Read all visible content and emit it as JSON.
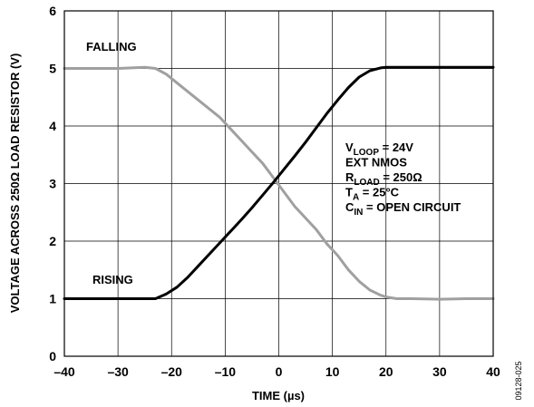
{
  "chart_data": {
    "type": "line",
    "xlabel": "TIME (µs)",
    "ylabel": "VOLTAGE ACROSS 250Ω LOAD RESISTOR (V)",
    "xlim": [
      -40,
      40
    ],
    "ylim": [
      0,
      6
    ],
    "x_ticks": [
      "–40",
      "–30",
      "–20",
      "–10",
      "0",
      "10",
      "20",
      "30",
      "40"
    ],
    "y_ticks": [
      "0",
      "1",
      "2",
      "3",
      "4",
      "5",
      "6"
    ],
    "grid": true,
    "series": [
      {
        "name": "FALLING",
        "color": "#a0a0a0",
        "x": [
          -40,
          -30,
          -25,
          -23,
          -21,
          -19,
          -17,
          -15,
          -13,
          -11,
          -9,
          -7,
          -5,
          -3,
          -1,
          1,
          3,
          5,
          7,
          9,
          11,
          13,
          15,
          17,
          19,
          20,
          22,
          25,
          30,
          35,
          40
        ],
        "y": [
          5.0,
          5.0,
          5.02,
          5.0,
          4.9,
          4.75,
          4.6,
          4.45,
          4.3,
          4.15,
          3.95,
          3.75,
          3.55,
          3.35,
          3.1,
          2.85,
          2.6,
          2.4,
          2.2,
          1.95,
          1.75,
          1.5,
          1.3,
          1.15,
          1.06,
          1.03,
          1.0,
          1.0,
          0.99,
          1.0,
          1.0
        ]
      },
      {
        "name": "RISING",
        "color": "#000000",
        "x": [
          -40,
          -30,
          -25,
          -23,
          -21,
          -19,
          -17,
          -15,
          -13,
          -11,
          -9,
          -7,
          -5,
          -3,
          -1,
          1,
          3,
          5,
          7,
          9,
          11,
          13,
          15,
          17,
          19,
          20,
          22,
          25,
          30,
          35,
          40
        ],
        "y": [
          1.0,
          1.0,
          1.0,
          1.0,
          1.08,
          1.2,
          1.37,
          1.57,
          1.77,
          1.97,
          2.17,
          2.37,
          2.58,
          2.8,
          3.02,
          3.25,
          3.48,
          3.72,
          3.97,
          4.22,
          4.45,
          4.67,
          4.85,
          4.96,
          5.01,
          5.02,
          5.02,
          5.02,
          5.02,
          5.02,
          5.02
        ]
      }
    ],
    "annotations": {
      "falling_label": "FALLING",
      "rising_label": "RISING",
      "conditions": [
        {
          "main": "V",
          "sub": "LOOP",
          "rest": " = 24V"
        },
        {
          "main": "EXT NMOS",
          "sub": "",
          "rest": ""
        },
        {
          "main": "R",
          "sub": "LOAD",
          "rest": " = 250Ω"
        },
        {
          "main": "T",
          "sub": "A",
          "rest": " = 25°C"
        },
        {
          "main": "C",
          "sub": "IN",
          "rest": " = OPEN CIRCUIT"
        }
      ]
    },
    "figure_id": "09128-025"
  }
}
